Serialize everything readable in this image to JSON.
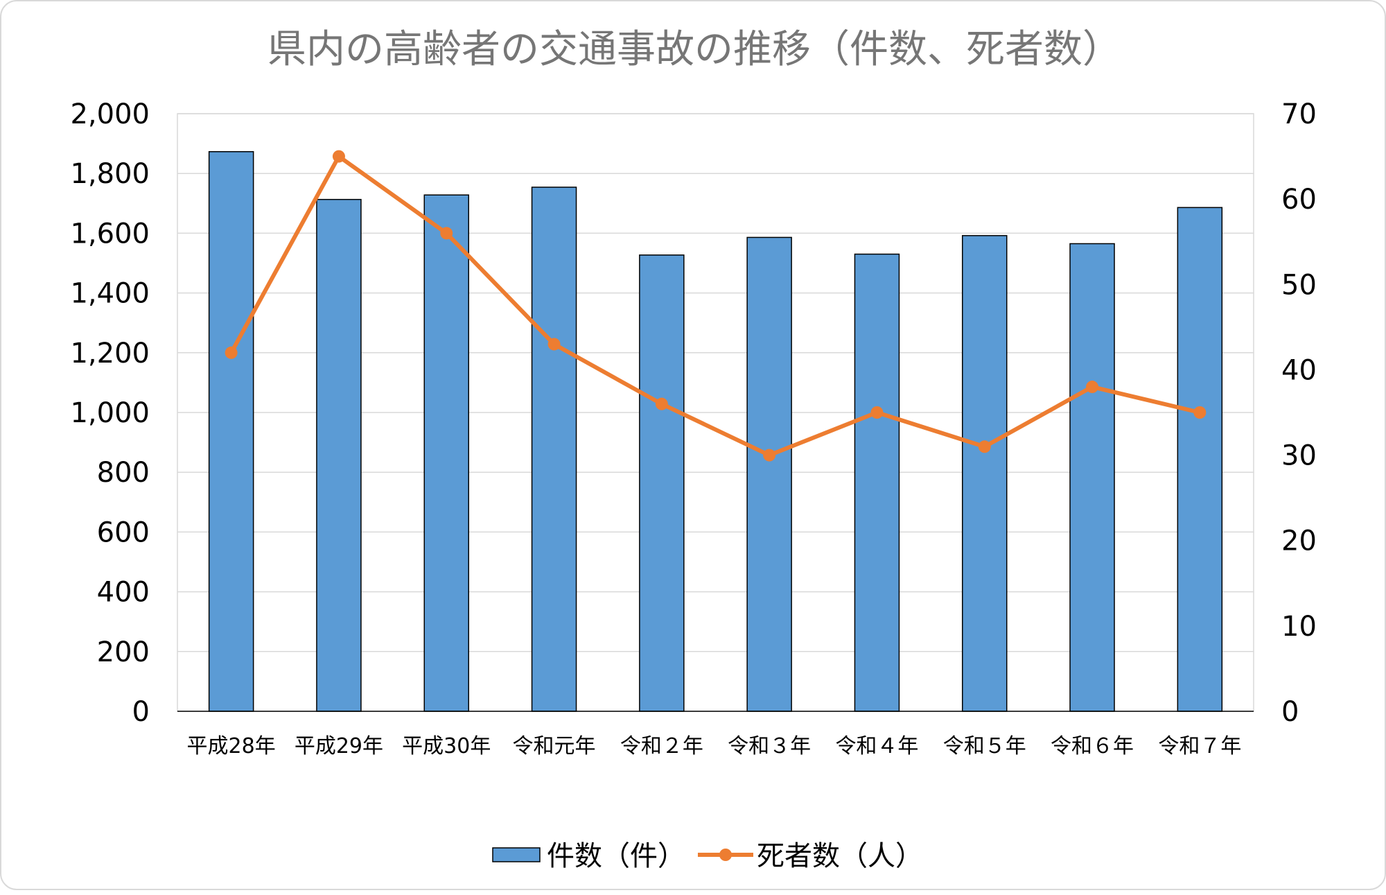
{
  "chart_data": {
    "type": "bar+line",
    "title": "県内の高齢者の交通事故の推移（件数、死者数）",
    "categories": [
      "平成28年",
      "平成29年",
      "平成30年",
      "令和元年",
      "令和２年",
      "令和３年",
      "令和４年",
      "令和５年",
      "令和６年",
      "令和７年"
    ],
    "series": [
      {
        "name": "件数（件）",
        "type": "bar",
        "axis": "left",
        "color": "#5b9bd5",
        "values": [
          1873,
          1713,
          1728,
          1754,
          1527,
          1586,
          1530,
          1592,
          1565,
          1686
        ]
      },
      {
        "name": "死者数（人）",
        "type": "line",
        "axis": "right",
        "color": "#ed7d31",
        "values": [
          42,
          65,
          56,
          43,
          36,
          30,
          35,
          31,
          38,
          35
        ]
      }
    ],
    "left_axis": {
      "ylim": [
        0,
        2000
      ],
      "ticks": [
        "0",
        "200",
        "400",
        "600",
        "800",
        "1,000",
        "1,200",
        "1,400",
        "1,600",
        "1,800",
        "2,000"
      ]
    },
    "right_axis": {
      "ylim": [
        0,
        70
      ],
      "ticks": [
        "0",
        "10",
        "20",
        "30",
        "40",
        "50",
        "60",
        "70"
      ]
    },
    "grid": true,
    "legend": "bottom"
  }
}
